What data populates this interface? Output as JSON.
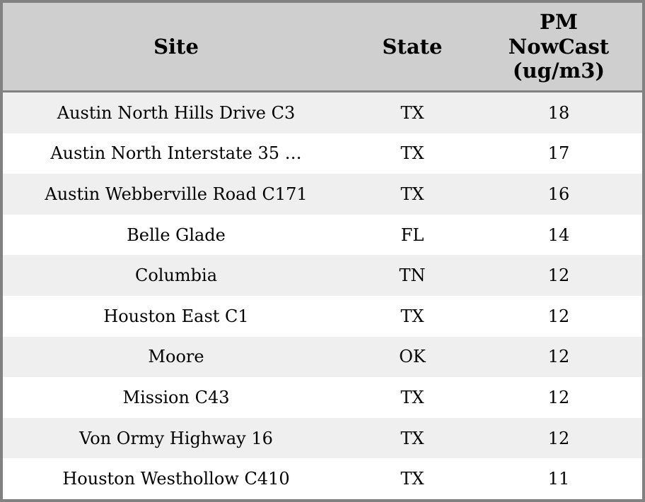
{
  "chart_data": {
    "type": "table",
    "columns": [
      "Site",
      "State",
      "PM NowCast (ug/m3)"
    ],
    "rows": [
      [
        "Austin North Hills Drive C3",
        "TX",
        18
      ],
      [
        "Austin North Interstate 35 …",
        "TX",
        17
      ],
      [
        "Austin Webberville Road C171",
        "TX",
        16
      ],
      [
        "Belle Glade",
        "FL",
        14
      ],
      [
        "Columbia",
        "TN",
        12
      ],
      [
        "Houston East C1",
        "TX",
        12
      ],
      [
        "Moore",
        "OK",
        12
      ],
      [
        "Mission C43",
        "TX",
        12
      ],
      [
        "Von Ormy Highway 16",
        "TX",
        12
      ],
      [
        "Houston Westhollow C410",
        "TX",
        11
      ]
    ],
    "layout": {
      "striped": true,
      "first_row_shaded": true,
      "alignment": "center"
    }
  },
  "labels": {
    "pm_header_display": "PM\nNowCast\n(ug/m3)"
  },
  "colors": {
    "header_bg": "#cfcfcf",
    "row_alt_bg": "#efefef",
    "row_bg": "#ffffff",
    "border": "#818181",
    "text": "#000000"
  }
}
